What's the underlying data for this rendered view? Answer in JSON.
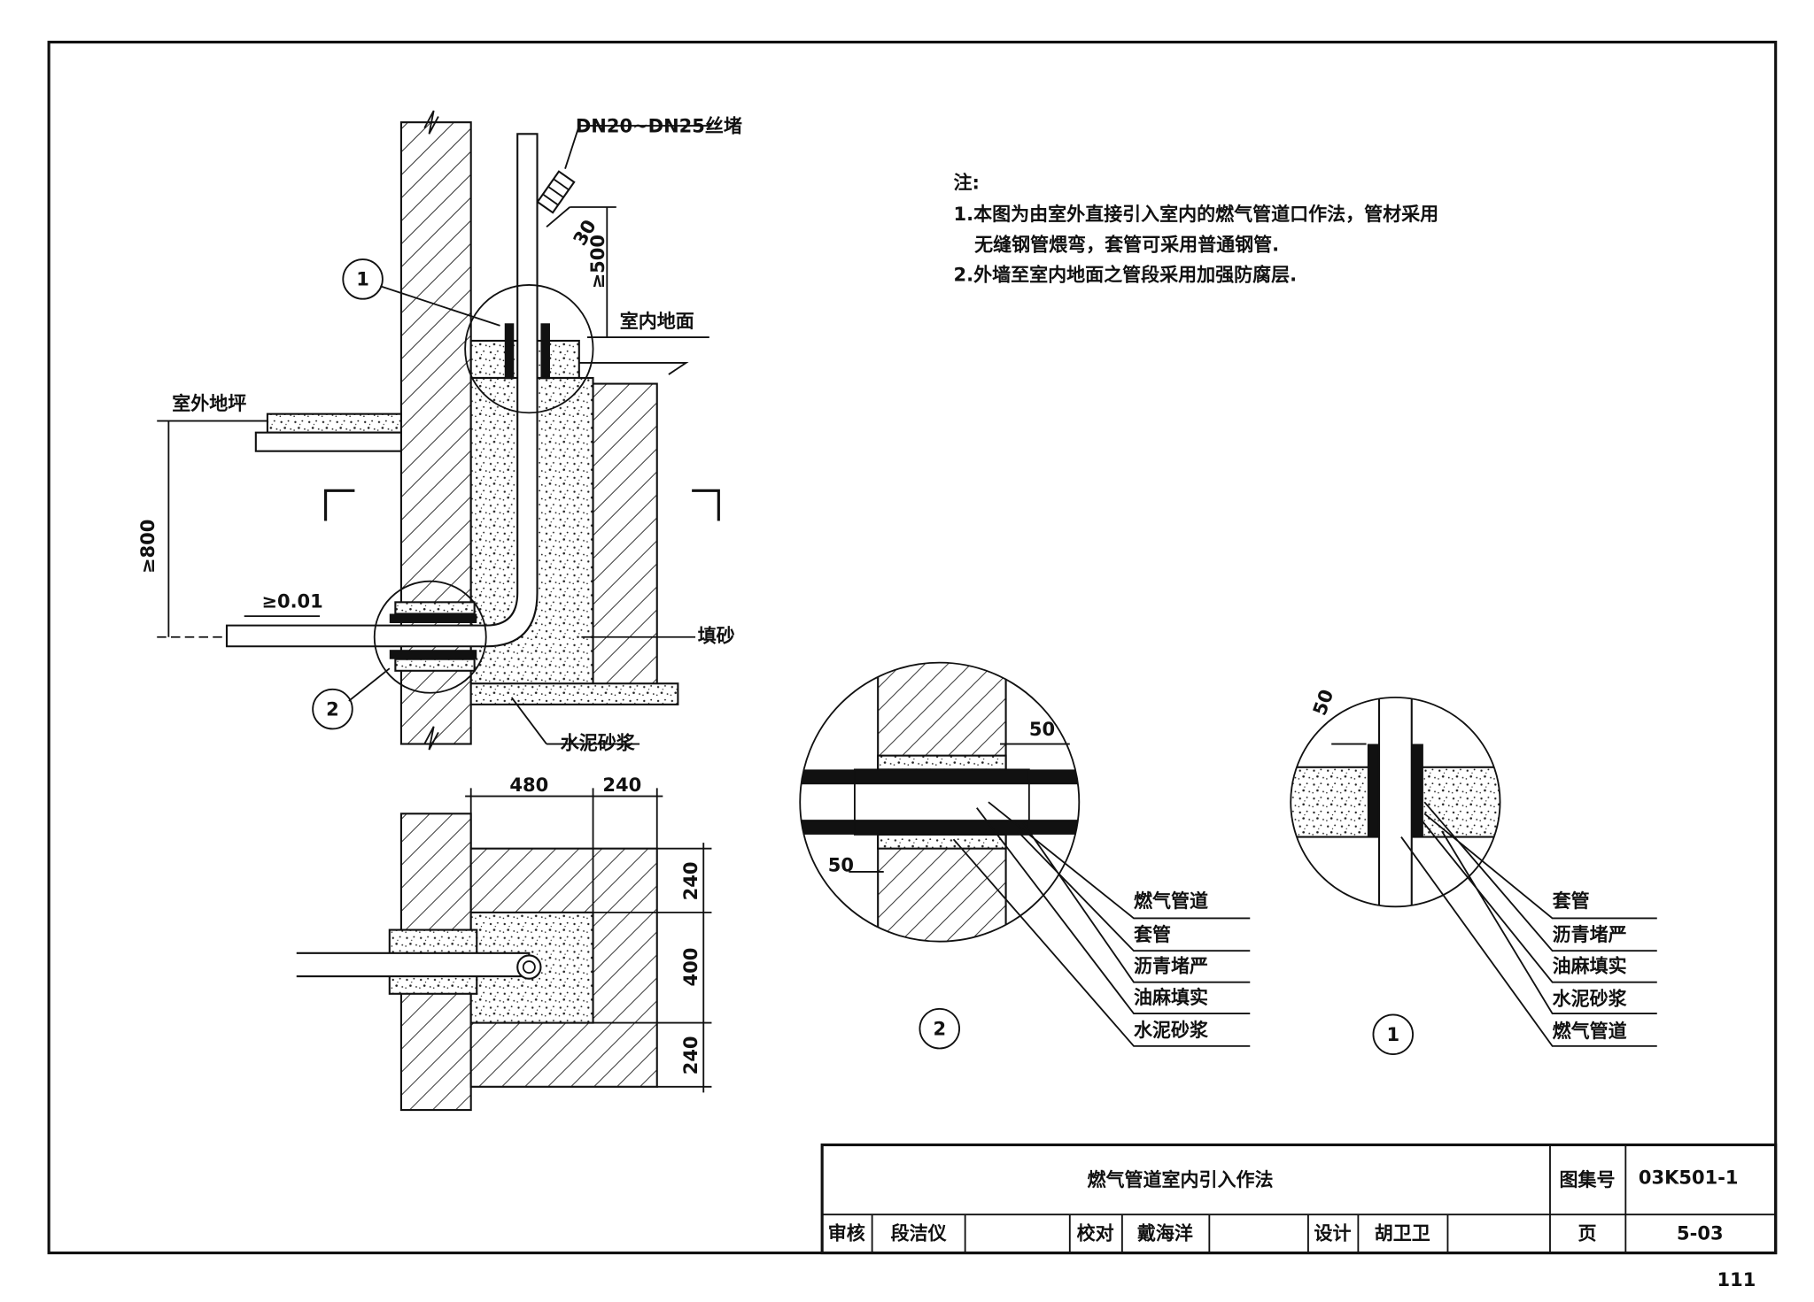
{
  "main_section": {
    "plug_label": "DN20~DN25丝堵",
    "dim_plug": "30",
    "dim_500": "≥500",
    "indoor_floor": "室内地面",
    "outdoor_ground": "室外地坪",
    "dim_800": "≥800",
    "slope": "≥0.01",
    "fill_sand": "填砂",
    "cement_mortar": "水泥砂浆",
    "callout_1": "1",
    "callout_2": "2"
  },
  "plan": {
    "dim_480": "480",
    "dim_240_top": "240",
    "dim_240_a": "240",
    "dim_400": "400",
    "dim_240_b": "240"
  },
  "notes": {
    "heading": "注:",
    "lines": [
      "1.本图为由室外直接引入室内的燃气管道口作法，管材采用",
      "无缝钢管煨弯，套管可采用普通钢管.",
      "2.外墙至室内地面之管段采用加强防腐层."
    ]
  },
  "detail_2": {
    "number": "2",
    "dims": [
      "50",
      "50"
    ],
    "labels": [
      "燃气管道",
      "套管",
      "沥青堵严",
      "油麻填实",
      "水泥砂浆"
    ]
  },
  "detail_1": {
    "number": "1",
    "dims": [
      "50"
    ],
    "labels": [
      "套管",
      "沥青堵严",
      "油麻填实",
      "水泥砂浆",
      "燃气管道"
    ]
  },
  "title_block": {
    "title": "燃气管道室内引入作法",
    "atlas_label": "图集号",
    "atlas_no": "03K501-1",
    "review_label": "审核",
    "reviewer": "段洁仪",
    "check_label": "校对",
    "checker": "戴海洋",
    "design_label": "设计",
    "designer": "胡卫卫",
    "page_label": "页",
    "page_no": "5-03"
  },
  "page_number": "111"
}
